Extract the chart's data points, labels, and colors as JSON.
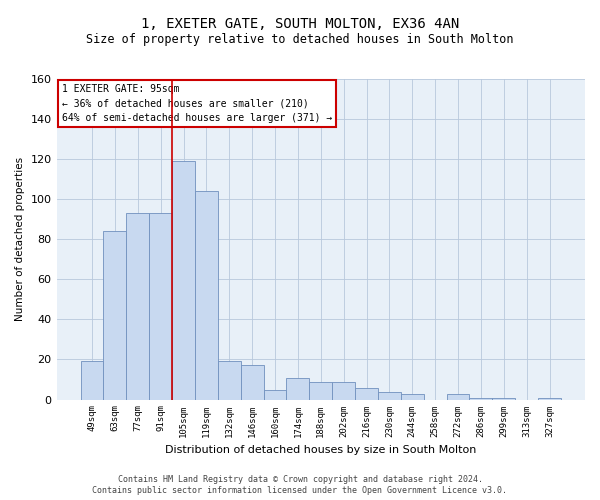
{
  "title": "1, EXETER GATE, SOUTH MOLTON, EX36 4AN",
  "subtitle": "Size of property relative to detached houses in South Molton",
  "xlabel": "Distribution of detached houses by size in South Molton",
  "ylabel": "Number of detached properties",
  "footnote1": "Contains HM Land Registry data © Crown copyright and database right 2024.",
  "footnote2": "Contains public sector information licensed under the Open Government Licence v3.0.",
  "bar_labels": [
    "49sqm",
    "63sqm",
    "77sqm",
    "91sqm",
    "105sqm",
    "119sqm",
    "132sqm",
    "146sqm",
    "160sqm",
    "174sqm",
    "188sqm",
    "202sqm",
    "216sqm",
    "230sqm",
    "244sqm",
    "258sqm",
    "272sqm",
    "286sqm",
    "299sqm",
    "313sqm",
    "327sqm"
  ],
  "bar_values": [
    19,
    84,
    93,
    93,
    119,
    104,
    19,
    17,
    5,
    11,
    9,
    9,
    6,
    4,
    3,
    0,
    3,
    1,
    1,
    0,
    1
  ],
  "bar_color": "#c8d9f0",
  "bar_edge_color": "#7090be",
  "ylim": [
    0,
    160
  ],
  "yticks": [
    0,
    20,
    40,
    60,
    80,
    100,
    120,
    140,
    160
  ],
  "vline_x_index": 3.5,
  "vline_color": "#cc0000",
  "annotation_title": "1 EXETER GATE: 95sqm",
  "annotation_line1": "← 36% of detached houses are smaller (210)",
  "annotation_line2": "64% of semi-detached houses are larger (371) →",
  "annotation_box_color": "#ffffff",
  "annotation_box_edge_color": "#cc0000",
  "grid_color": "#b8c8dc",
  "background_color": "#e8f0f8",
  "title_fontsize": 10,
  "subtitle_fontsize": 8.5
}
